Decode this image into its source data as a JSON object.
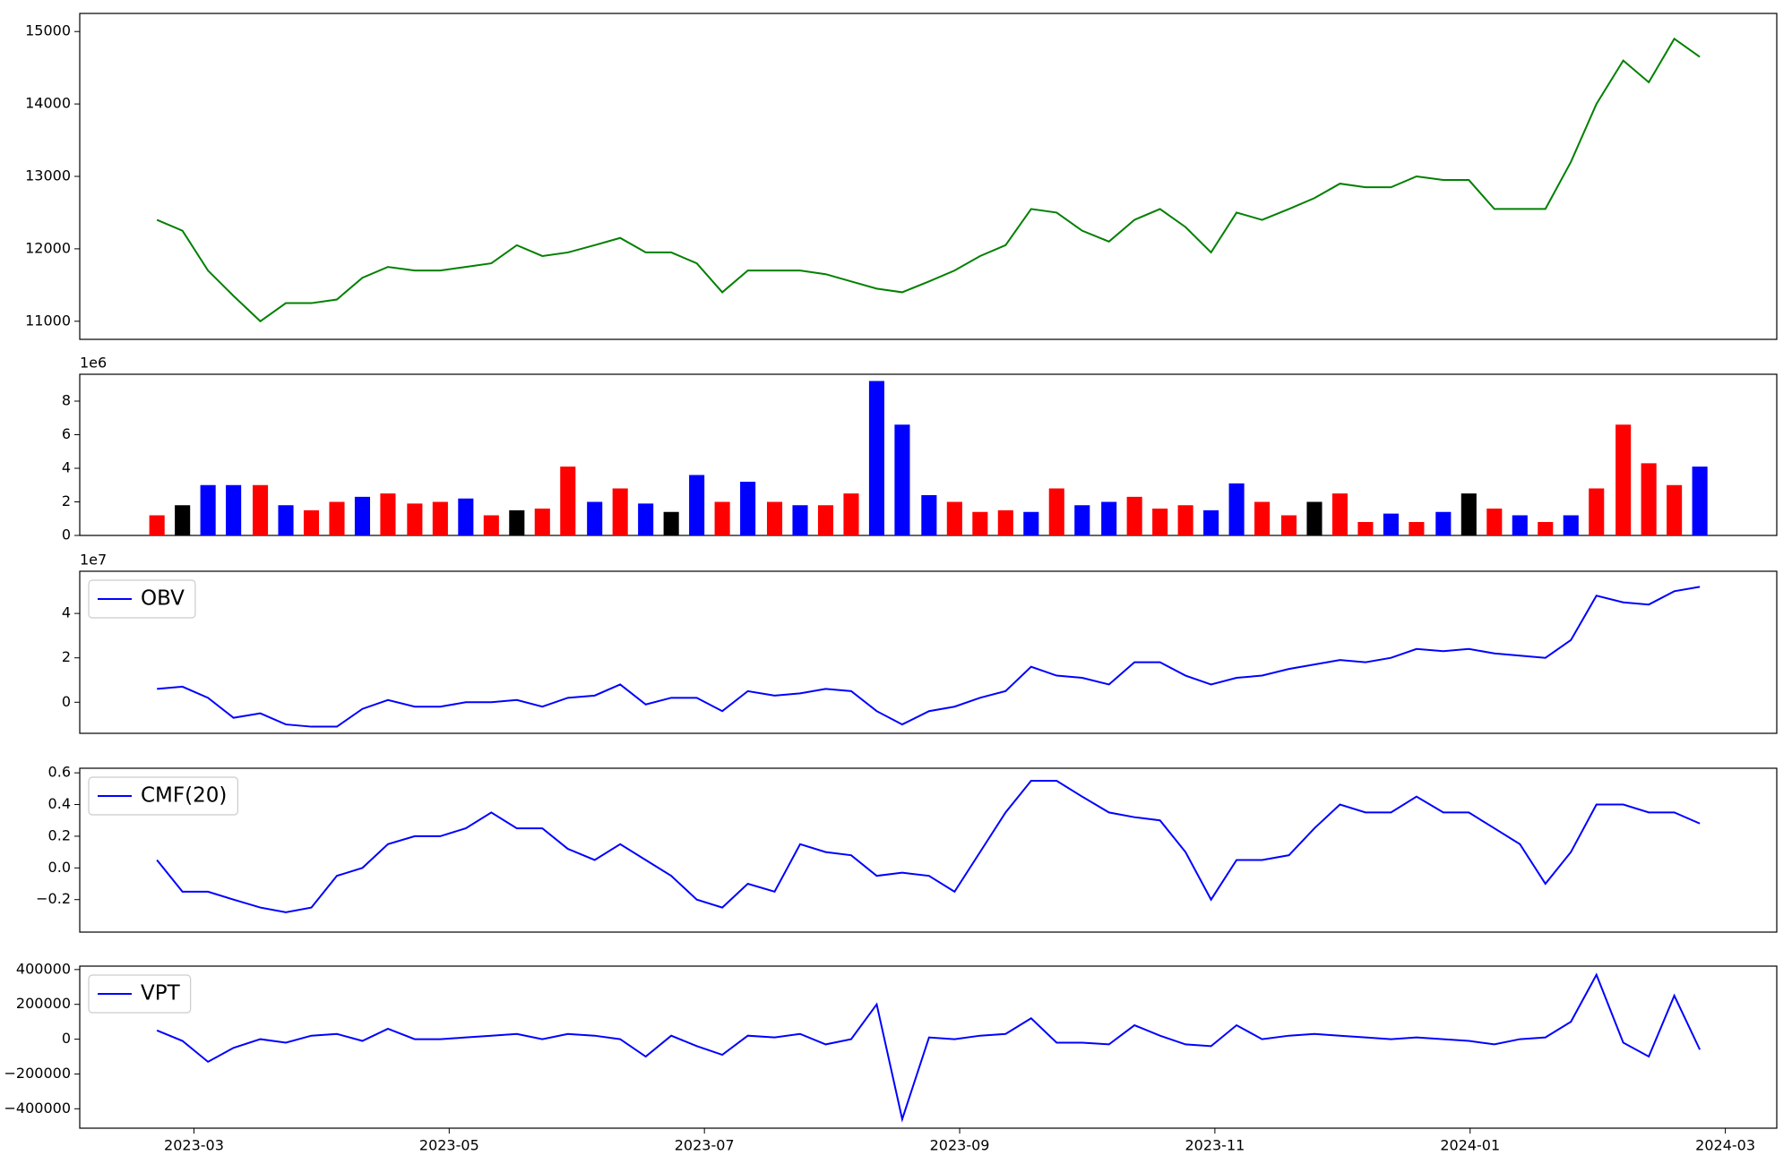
{
  "chart_data": [
    {
      "type": "line",
      "color": "#008000",
      "values": [
        12400,
        12250,
        11700,
        11350,
        11000,
        11250,
        11250,
        11300,
        11600,
        11750,
        11700,
        11700,
        11750,
        11800,
        12050,
        11900,
        11950,
        12050,
        12150,
        11950,
        11950,
        11800,
        11400,
        11700,
        11700,
        11700,
        11650,
        11550,
        11450,
        11400,
        11550,
        11700,
        11900,
        12050,
        12550,
        12500,
        12250,
        12100,
        12400,
        12550,
        12300,
        11950,
        12500,
        12400,
        12550,
        12700,
        12900,
        12850,
        12850,
        13000,
        12950,
        12950,
        12550,
        12550,
        12550,
        13200,
        14000,
        14600,
        14300,
        14900,
        14650
      ],
      "ylim": [
        10750,
        15250
      ],
      "yticks": [
        11000,
        12000,
        13000,
        14000,
        15000
      ]
    },
    {
      "type": "bar",
      "offset_text": "1e6",
      "values": [
        1.2,
        1.8,
        3.0,
        3.0,
        3.0,
        1.8,
        1.5,
        2.0,
        2.3,
        2.5,
        1.9,
        2.0,
        2.2,
        1.2,
        1.5,
        1.6,
        4.1,
        2.0,
        2.8,
        1.9,
        1.4,
        3.6,
        2.0,
        3.2,
        2.0,
        1.8,
        1.8,
        2.5,
        9.2,
        6.6,
        2.4,
        2.0,
        1.4,
        1.5,
        1.4,
        2.8,
        1.8,
        2.0,
        2.3,
        1.6,
        1.8,
        1.5,
        3.1,
        2.0,
        1.2,
        2.0,
        2.5,
        0.8,
        1.3,
        0.8,
        1.4,
        2.5,
        1.6,
        1.2,
        0.8,
        1.2,
        2.8,
        6.6,
        4.3,
        3.0,
        4.1
      ],
      "colors": [
        "#ff0000",
        "#000000",
        "#0000ff",
        "#0000ff",
        "#ff0000",
        "#0000ff",
        "#ff0000",
        "#ff0000",
        "#0000ff",
        "#ff0000",
        "#ff0000",
        "#ff0000",
        "#0000ff",
        "#ff0000",
        "#000000",
        "#ff0000",
        "#ff0000",
        "#0000ff",
        "#ff0000",
        "#0000ff",
        "#000000",
        "#0000ff",
        "#ff0000",
        "#0000ff",
        "#ff0000",
        "#0000ff",
        "#ff0000",
        "#ff0000",
        "#0000ff",
        "#0000ff",
        "#0000ff",
        "#ff0000",
        "#ff0000",
        "#ff0000",
        "#0000ff",
        "#ff0000",
        "#0000ff",
        "#0000ff",
        "#ff0000",
        "#ff0000",
        "#ff0000",
        "#0000ff",
        "#0000ff",
        "#ff0000",
        "#ff0000",
        "#000000",
        "#ff0000",
        "#ff0000",
        "#0000ff",
        "#ff0000",
        "#0000ff",
        "#000000",
        "#ff0000",
        "#0000ff",
        "#ff0000",
        "#0000ff",
        "#ff0000",
        "#ff0000",
        "#ff0000",
        "#ff0000",
        "#0000ff"
      ],
      "ylim": [
        0,
        9.6
      ],
      "yticks": [
        0,
        2,
        4,
        6,
        8
      ]
    },
    {
      "type": "line",
      "offset_text": "1e7",
      "legend": "upper left",
      "series": [
        {
          "name": "OBV",
          "color": "#0000ff",
          "values": [
            0.6,
            0.7,
            0.2,
            -0.7,
            -0.5,
            -1.0,
            -1.1,
            -1.1,
            -0.3,
            0.1,
            -0.2,
            -0.2,
            0.0,
            0.0,
            0.1,
            -0.2,
            0.2,
            0.3,
            0.8,
            -0.1,
            0.2,
            0.2,
            -0.4,
            0.5,
            0.3,
            0.4,
            0.6,
            0.5,
            -0.4,
            -1.0,
            -0.4,
            -0.2,
            0.2,
            0.5,
            1.6,
            1.2,
            1.1,
            0.8,
            1.8,
            1.8,
            1.2,
            0.8,
            1.1,
            1.2,
            1.5,
            1.7,
            1.9,
            1.8,
            2.0,
            2.4,
            2.3,
            2.4,
            2.2,
            2.1,
            2.0,
            2.8,
            4.8,
            4.5,
            4.4,
            5.0,
            5.2
          ]
        }
      ],
      "ylim": [
        -1.4,
        5.9
      ],
      "yticks": [
        0,
        2,
        4
      ]
    },
    {
      "type": "line",
      "legend": "upper left",
      "series": [
        {
          "name": "CMF(20)",
          "color": "#0000ff",
          "values": [
            0.05,
            -0.15,
            -0.15,
            -0.2,
            -0.25,
            -0.28,
            -0.25,
            -0.05,
            0.0,
            0.15,
            0.2,
            0.2,
            0.25,
            0.35,
            0.25,
            0.25,
            0.12,
            0.05,
            0.15,
            0.05,
            -0.05,
            -0.2,
            -0.25,
            -0.1,
            -0.15,
            0.15,
            0.1,
            0.08,
            -0.05,
            -0.03,
            -0.05,
            -0.15,
            0.1,
            0.35,
            0.55,
            0.55,
            0.45,
            0.35,
            0.32,
            0.3,
            0.1,
            -0.2,
            0.05,
            0.05,
            0.08,
            0.25,
            0.4,
            0.35,
            0.35,
            0.45,
            0.35,
            0.35,
            0.25,
            0.15,
            -0.1,
            0.1,
            0.4,
            0.4,
            0.35,
            0.35,
            0.28
          ]
        }
      ],
      "ylim": [
        -0.405,
        0.629
      ],
      "yticks": [
        {
          "value": -0.2,
          "label": "−0.2"
        },
        {
          "value": 0,
          "label": "0.0"
        },
        0.2,
        0.4,
        0.6
      ]
    },
    {
      "type": "line",
      "legend": "upper left",
      "series": [
        {
          "name": "VPT",
          "color": "#0000ff",
          "values": [
            50000,
            -10000,
            -130000,
            -50000,
            0,
            -20000,
            20000,
            30000,
            -10000,
            60000,
            0,
            0,
            10000,
            20000,
            30000,
            0,
            30000,
            20000,
            0,
            -100000,
            20000,
            -40000,
            -90000,
            20000,
            10000,
            30000,
            -30000,
            0,
            200000,
            -460000,
            10000,
            0,
            20000,
            30000,
            120000,
            -20000,
            -20000,
            -30000,
            80000,
            20000,
            -30000,
            -40000,
            80000,
            0,
            20000,
            30000,
            20000,
            10000,
            0,
            10000,
            0,
            -10000,
            -30000,
            0,
            10000,
            100000,
            370000,
            -20000,
            -100000,
            250000,
            -60000
          ]
        }
      ],
      "ylim": [
        -511500,
        419700
      ],
      "yticks": [
        {
          "value": -400000,
          "label": "−400000"
        },
        {
          "value": -200000,
          "label": "−200000"
        },
        0,
        200000,
        400000
      ],
      "x": [
        1.71,
        1.91,
        2.11,
        2.31,
        2.52,
        2.72,
        2.92,
        3.12,
        3.32,
        3.52,
        3.73,
        3.93,
        4.13,
        4.33,
        4.53,
        4.73,
        4.93,
        5.14,
        5.34,
        5.54,
        5.74,
        5.94,
        6.14,
        6.34,
        6.55,
        6.75,
        6.95,
        7.15,
        7.35,
        7.55,
        7.76,
        7.96,
        8.16,
        8.36,
        8.56,
        8.76,
        8.96,
        9.17,
        9.37,
        9.57,
        9.77,
        9.97,
        10.17,
        10.37,
        10.58,
        10.78,
        10.98,
        11.18,
        11.38,
        11.58,
        11.79,
        11.99,
        12.19,
        12.39,
        12.59,
        12.79,
        12.99,
        13.2,
        13.4,
        13.6,
        13.8
      ],
      "xlim": [
        1.105,
        14.403
      ],
      "xticks": [
        {
          "value": 2,
          "label": "2023-03"
        },
        {
          "value": 4,
          "label": "2023-05"
        },
        {
          "value": 6,
          "label": "2023-07"
        },
        {
          "value": 8,
          "label": "2023-09"
        },
        {
          "value": 10,
          "label": "2023-11"
        },
        {
          "value": 12,
          "label": "2024-01"
        },
        {
          "value": 14,
          "label": "2024-03"
        }
      ]
    }
  ]
}
